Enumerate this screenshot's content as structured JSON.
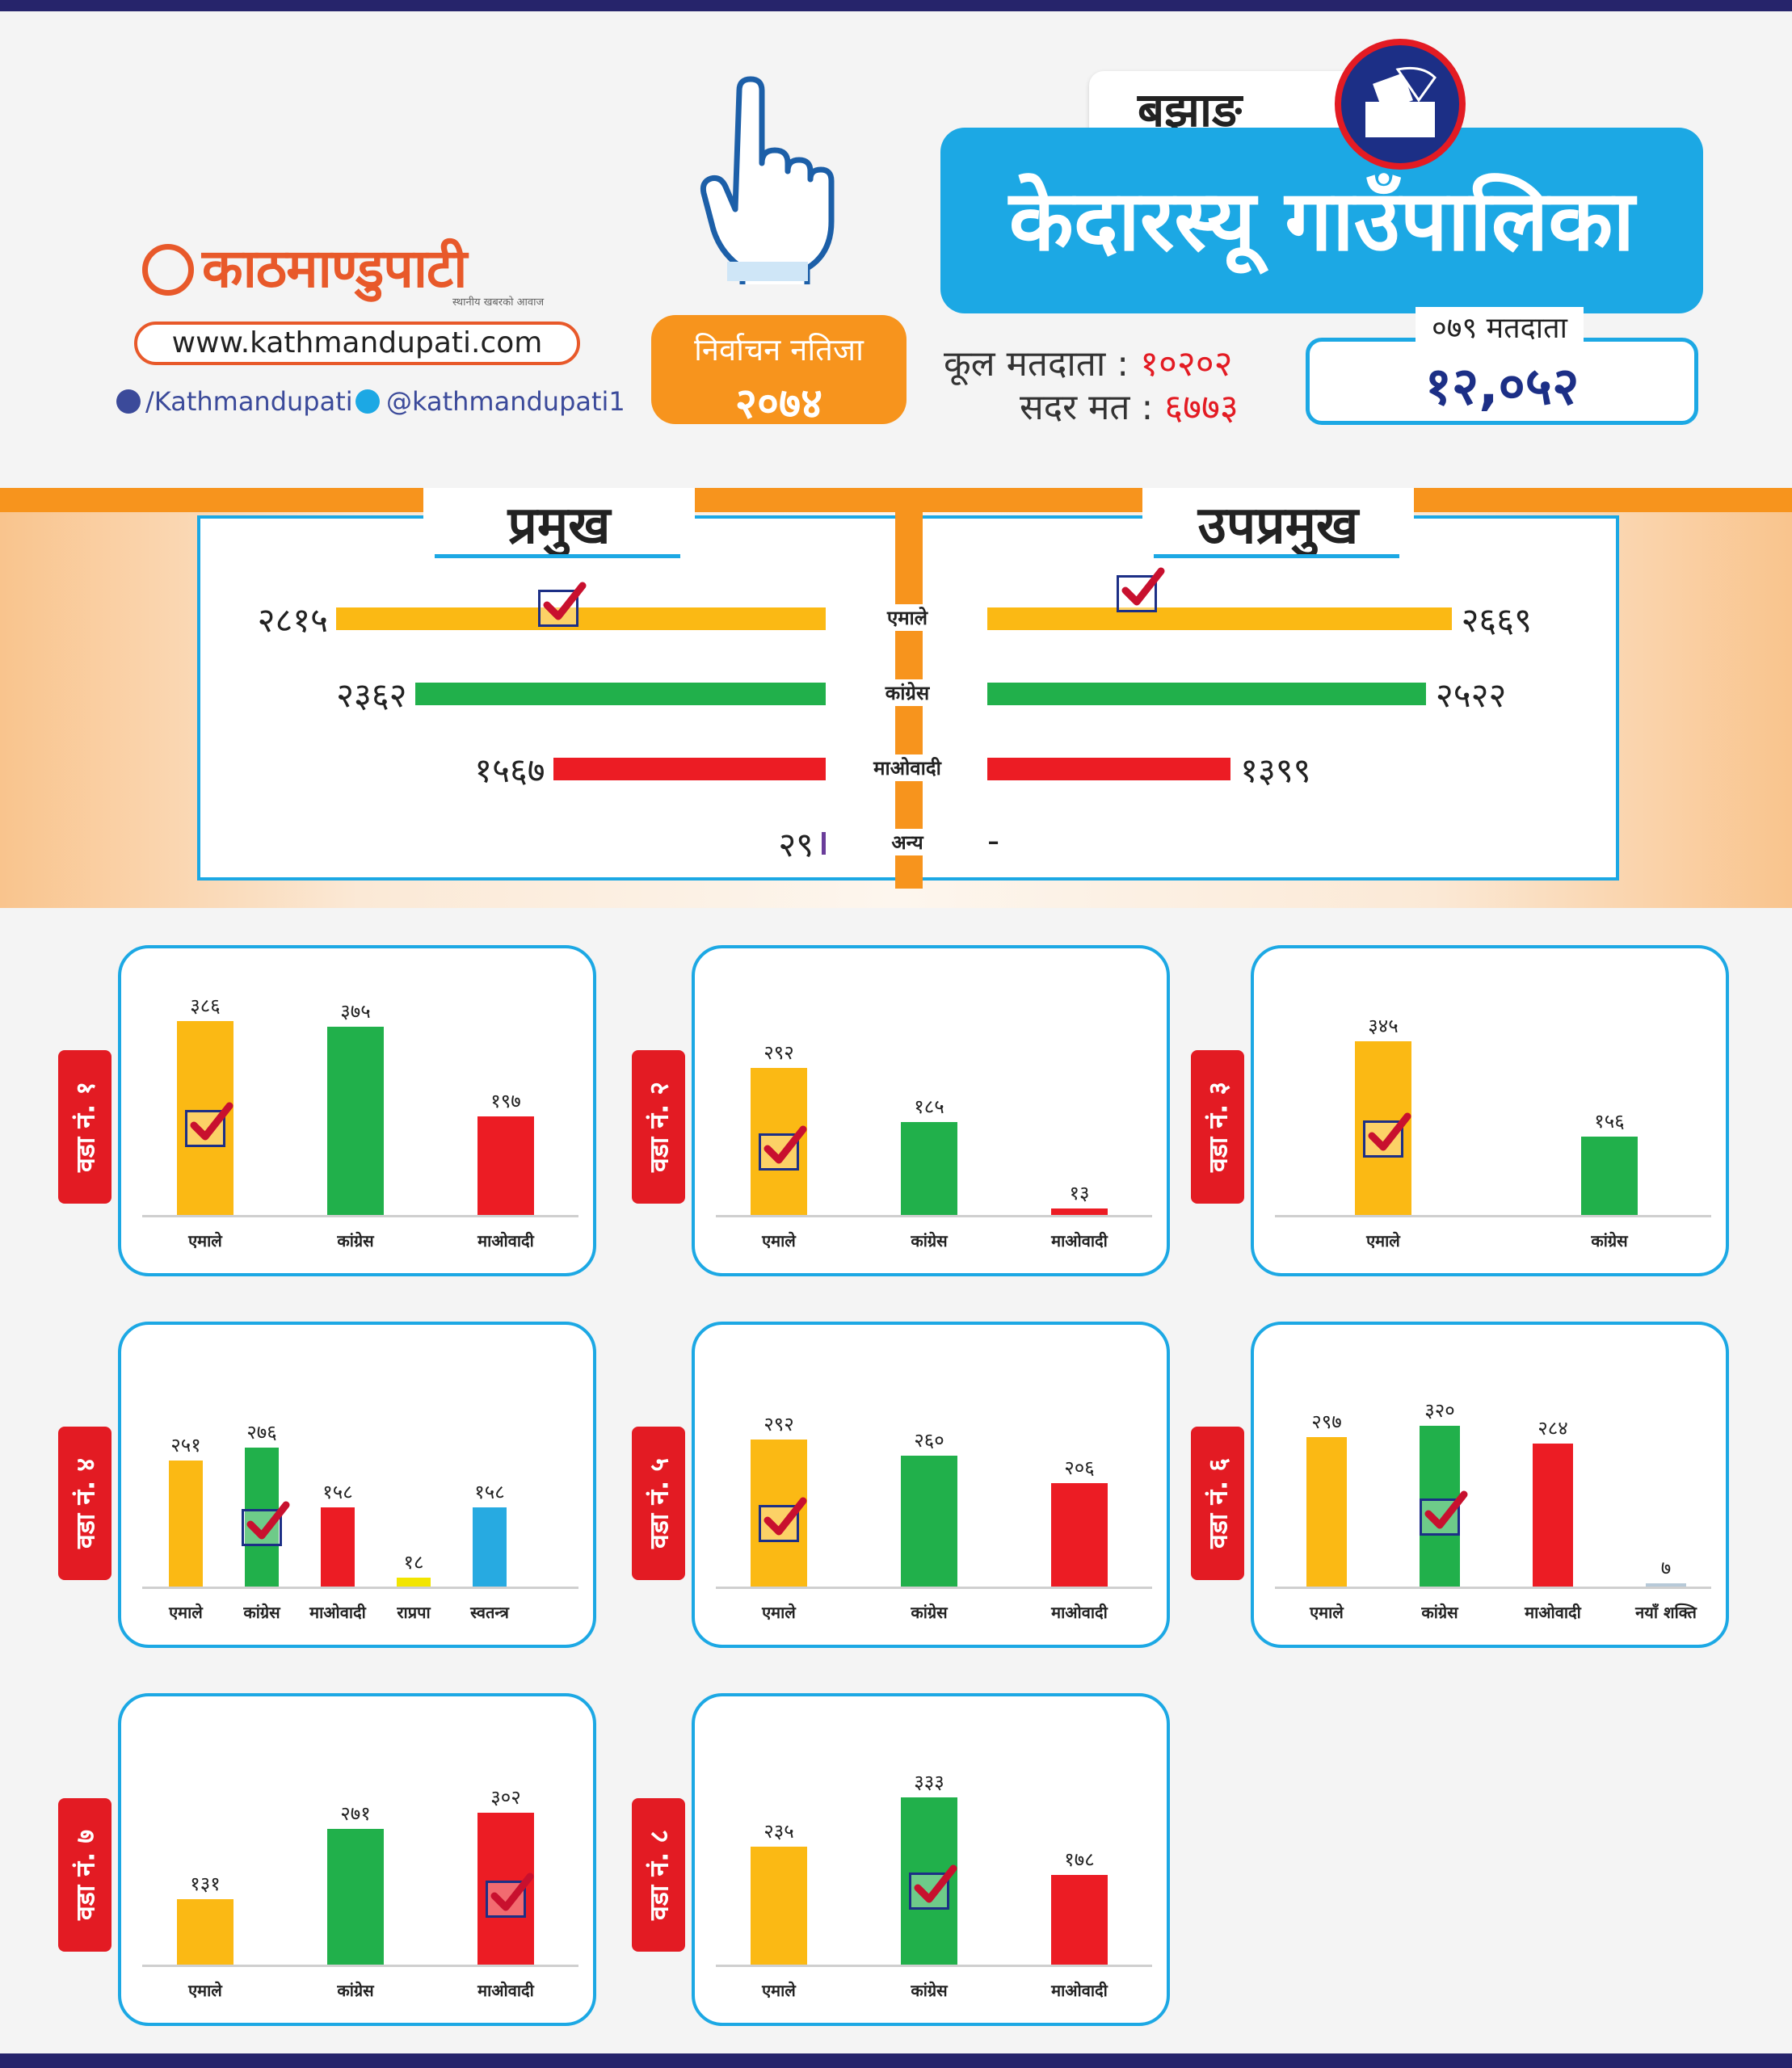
{
  "brand": {
    "logo_text": "काठमाण्डुपाटी",
    "tagline": "स्थानीय खबरको आवाज",
    "url": "www.kathmandupati.com",
    "facebook": "/Kathmandupati",
    "twitter": "@kathmandupati1"
  },
  "badge": {
    "line1": "निर्वाचन नतिजा",
    "line2": "२०७४"
  },
  "header": {
    "district": "बझाङ",
    "municipality": "केदारस्यू गाउँपालिका",
    "total_voters_label": "कूल मतदाता :",
    "total_voters_value": "१०२०२",
    "valid_votes_label": "सदर मत :",
    "valid_votes_value": "६७७३",
    "voters_079_label": "०७९ मतदाता",
    "voters_079_value": "१२,०५२"
  },
  "colors": {
    "emale": "#fbb914",
    "congress": "#21b04b",
    "maoist": "#ec1c24",
    "rpp": "#f2e500",
    "independent": "#27aae1",
    "naya": "#b7c9d8",
    "other": "#6a3d9a",
    "accent": "#1ca8e4",
    "orange": "#f7941d",
    "navy": "#1c2f86"
  },
  "chart_data": [
    {
      "type": "bar",
      "title": "प्रमुख",
      "orientation": "horizontal",
      "categories": [
        "एमाले",
        "कांग्रेस",
        "माओवादी",
        "अन्य"
      ],
      "values": [
        2815,
        2362,
        1567,
        29
      ],
      "value_labels": [
        "२८१५",
        "२३६२",
        "१५६७",
        "२९"
      ],
      "winner": "एमाले"
    },
    {
      "type": "bar",
      "title": "उपप्रमुख",
      "orientation": "horizontal",
      "categories": [
        "एमाले",
        "कांग्रेस",
        "माओवादी",
        "अन्य"
      ],
      "values": [
        2669,
        2522,
        1399,
        null
      ],
      "value_labels": [
        "२६६९",
        "२५२२",
        "१३९९",
        "-"
      ],
      "winner": "एमाले"
    },
    {
      "type": "bar",
      "title": "वडा नं. १",
      "categories": [
        "एमाले",
        "कांग्रेस",
        "माओवादी"
      ],
      "values": [
        386,
        375,
        197
      ],
      "value_labels": [
        "३८६",
        "३७५",
        "१९७"
      ],
      "winner": "एमाले"
    },
    {
      "type": "bar",
      "title": "वडा नं. २",
      "categories": [
        "एमाले",
        "कांग्रेस",
        "माओवादी"
      ],
      "values": [
        292,
        185,
        13
      ],
      "value_labels": [
        "२९२",
        "१८५",
        "१३"
      ],
      "winner": "एमाले"
    },
    {
      "type": "bar",
      "title": "वडा नं. ३",
      "categories": [
        "एमाले",
        "कांग्रेस"
      ],
      "values": [
        345,
        156
      ],
      "value_labels": [
        "३४५",
        "१५६"
      ],
      "winner": "एमाले"
    },
    {
      "type": "bar",
      "title": "वडा नं. ४",
      "categories": [
        "एमाले",
        "कांग्रेस",
        "माओवादी",
        "राप्रपा",
        "स्वतन्त्र"
      ],
      "values": [
        251,
        276,
        158,
        18,
        158
      ],
      "value_labels": [
        "२५१",
        "२७६",
        "१५८",
        "१८",
        "१५८"
      ],
      "winner": "कांग्रेस"
    },
    {
      "type": "bar",
      "title": "वडा नं. ५",
      "categories": [
        "एमाले",
        "कांग्रेस",
        "माओवादी"
      ],
      "values": [
        292,
        260,
        206
      ],
      "value_labels": [
        "२९२",
        "२६०",
        "२०६"
      ],
      "winner": "एमाले"
    },
    {
      "type": "bar",
      "title": "वडा नं. ६",
      "categories": [
        "एमाले",
        "कांग्रेस",
        "माओवादी",
        "नयाँ शक्ति"
      ],
      "values": [
        297,
        320,
        284,
        7
      ],
      "value_labels": [
        "२९७",
        "३२०",
        "२८४",
        "७"
      ],
      "winner": "कांग्रेस"
    },
    {
      "type": "bar",
      "title": "वडा नं. ७",
      "categories": [
        "एमाले",
        "कांग्रेस",
        "माओवादी"
      ],
      "values": [
        131,
        271,
        302
      ],
      "value_labels": [
        "१३१",
        "२७१",
        "३०२"
      ],
      "winner": "माओवादी"
    },
    {
      "type": "bar",
      "title": "वडा नं. ८",
      "categories": [
        "एमाले",
        "कांग्रेस",
        "माओवादी"
      ],
      "values": [
        235,
        333,
        178
      ],
      "value_labels": [
        "२३५",
        "३३३",
        "१७८"
      ],
      "winner": "कांग्रेस"
    }
  ]
}
